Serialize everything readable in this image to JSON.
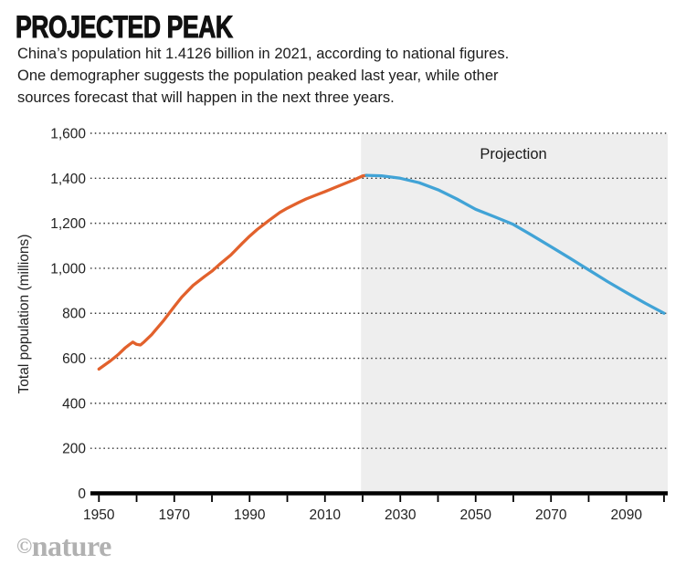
{
  "header": {
    "title": "PROJECTED PEAK",
    "subtitle_lines": [
      "China’s population hit 1.4126 billion in 2021, according to national figures.",
      "One demographer suggests the population peaked last year, while other",
      "sources forecast that will happen in the next three years."
    ]
  },
  "footer": {
    "copyright": "©",
    "brand": "nature"
  },
  "chart_data": {
    "type": "line",
    "title": "PROJECTED PEAK",
    "xlabel": "",
    "ylabel": "Total population (millions)",
    "xlim": [
      1950,
      2100
    ],
    "ylim": [
      0,
      1600
    ],
    "grid": "horizontal-dotted",
    "colors": {
      "historical": "#e2612c",
      "projection": "#41a3d6",
      "projection_region_fill": "#eeeeee",
      "axis": "#000000",
      "grid_dots": "#333333",
      "brand_gray": "#b1b1b1"
    },
    "projection_region": {
      "start_year": 2020,
      "end_year": 2100,
      "label": "Projection"
    },
    "x_minor_tick_years": [
      1950,
      1960,
      1970,
      1980,
      1990,
      2000,
      2010,
      2020,
      2030,
      2040,
      2050,
      2060,
      2070,
      2080,
      2090,
      2100
    ],
    "x_tick_labels": [
      {
        "year": 1950,
        "label": "1950"
      },
      {
        "year": 1970,
        "label": "1970"
      },
      {
        "year": 1990,
        "label": "1990"
      },
      {
        "year": 2010,
        "label": "2010"
      },
      {
        "year": 2030,
        "label": "2030"
      },
      {
        "year": 2050,
        "label": "2050"
      },
      {
        "year": 2070,
        "label": "2070"
      },
      {
        "year": 2090,
        "label": "2090"
      }
    ],
    "y_ticks": [
      {
        "value": 0,
        "label": "0"
      },
      {
        "value": 200,
        "label": "200"
      },
      {
        "value": 400,
        "label": "400"
      },
      {
        "value": 600,
        "label": "600"
      },
      {
        "value": 800,
        "label": "800"
      },
      {
        "value": 1000,
        "label": "1,000"
      },
      {
        "value": 1200,
        "label": "1,200"
      },
      {
        "value": 1400,
        "label": "1,400"
      },
      {
        "value": 1600,
        "label": "1,600"
      }
    ],
    "series": [
      {
        "name": "historical",
        "color": "#e2612c",
        "points": [
          [
            1950,
            552
          ],
          [
            1953,
            588
          ],
          [
            1955,
            615
          ],
          [
            1957,
            647
          ],
          [
            1958,
            660
          ],
          [
            1959,
            672
          ],
          [
            1960,
            662
          ],
          [
            1961,
            659
          ],
          [
            1962,
            673
          ],
          [
            1964,
            705
          ],
          [
            1965,
            725
          ],
          [
            1967,
            764
          ],
          [
            1970,
            830
          ],
          [
            1972,
            872
          ],
          [
            1975,
            924
          ],
          [
            1978,
            963
          ],
          [
            1980,
            987
          ],
          [
            1982,
            1017
          ],
          [
            1985,
            1059
          ],
          [
            1988,
            1110
          ],
          [
            1990,
            1143
          ],
          [
            1992,
            1172
          ],
          [
            1995,
            1211
          ],
          [
            1998,
            1248
          ],
          [
            2000,
            1267
          ],
          [
            2003,
            1292
          ],
          [
            2005,
            1308
          ],
          [
            2008,
            1328
          ],
          [
            2010,
            1341
          ],
          [
            2013,
            1361
          ],
          [
            2015,
            1375
          ],
          [
            2018,
            1395
          ],
          [
            2020,
            1410
          ],
          [
            2021,
            1413
          ]
        ]
      },
      {
        "name": "projection",
        "color": "#41a3d6",
        "points": [
          [
            2021,
            1413
          ],
          [
            2025,
            1411
          ],
          [
            2030,
            1400
          ],
          [
            2035,
            1380
          ],
          [
            2040,
            1349
          ],
          [
            2045,
            1308
          ],
          [
            2050,
            1262
          ],
          [
            2055,
            1229
          ],
          [
            2060,
            1195
          ],
          [
            2065,
            1146
          ],
          [
            2070,
            1096
          ],
          [
            2075,
            1045
          ],
          [
            2080,
            993
          ],
          [
            2085,
            941
          ],
          [
            2090,
            892
          ],
          [
            2095,
            845
          ],
          [
            2100,
            800
          ]
        ]
      }
    ]
  }
}
